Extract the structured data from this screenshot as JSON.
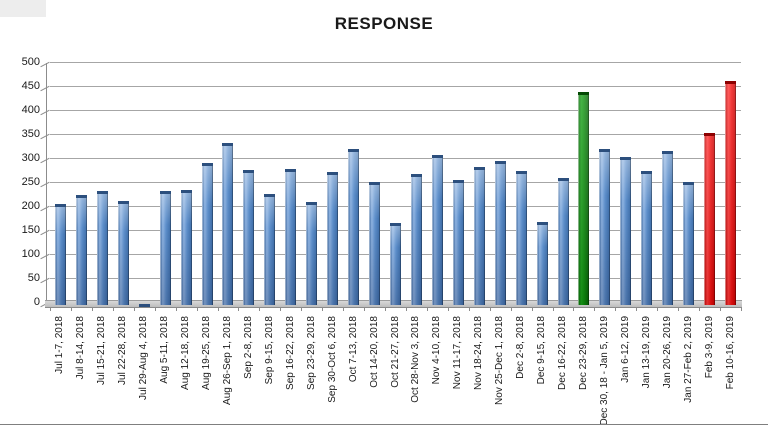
{
  "chart_data": {
    "type": "bar",
    "title": "RESPONSE",
    "xlabel": "",
    "ylabel": "",
    "ylim": [
      0,
      500
    ],
    "yticks": [
      0,
      50,
      100,
      150,
      200,
      250,
      300,
      350,
      400,
      450,
      500
    ],
    "grid": "horizontal",
    "legend": "none",
    "categories": [
      "Jul 1-7, 2018",
      "Jul 8-14, 2018",
      "Jul 15-21, 2018",
      "Jul 22-28, 2018",
      "Jul 29-Aug 4, 2018",
      "Aug 5-11, 2018",
      "Aug 12-18, 2018",
      "Aug 19-25, 2018",
      "Aug 26-Sep 1, 2018",
      "Sep 2-8, 2018",
      "Sep 9-15, 2018",
      "Sep 16-22, 2018",
      "Sep 23-29, 2018",
      "Sep 30-Oct 6, 2018",
      "Oct 7-13, 2018",
      "Oct 14-20, 2018",
      "Oct 21-27, 2018",
      "Oct 28-Nov 3, 2018",
      "Nov 4-10, 2018",
      "Nov 11-17, 2018",
      "Nov 18-24, 2018",
      "Nov 25-Dec 1, 2018",
      "Dec 2-8, 2018",
      "Dec 9-15, 2018",
      "Dec 16-22, 2018",
      "Dec 23-29, 2018",
      "Dec 30, 18 - Jan 5, 2019",
      "Jan 6-12, 2019",
      "Jan 13-19, 2019",
      "Jan 20-26, 2019",
      "Jan 27-Feb 2, 2019",
      "Feb 3-9, 2019",
      "Feb 10-16, 2019"
    ],
    "values": [
      210,
      230,
      237,
      216,
      3,
      238,
      240,
      296,
      338,
      281,
      232,
      283,
      215,
      278,
      324,
      257,
      171,
      273,
      312,
      260,
      287,
      301,
      279,
      173,
      264,
      443,
      326,
      309,
      280,
      320,
      256,
      358,
      466
    ],
    "bar_colors": [
      "blue",
      "blue",
      "blue",
      "blue",
      "blue",
      "blue",
      "blue",
      "blue",
      "blue",
      "blue",
      "blue",
      "blue",
      "blue",
      "blue",
      "blue",
      "blue",
      "blue",
      "blue",
      "blue",
      "blue",
      "blue",
      "blue",
      "blue",
      "blue",
      "blue",
      "green",
      "blue",
      "blue",
      "blue",
      "blue",
      "blue",
      "red",
      "red"
    ],
    "colors": {
      "blue": "#4f81bd",
      "green": "#0a8a0a",
      "red": "#ee1111"
    }
  }
}
